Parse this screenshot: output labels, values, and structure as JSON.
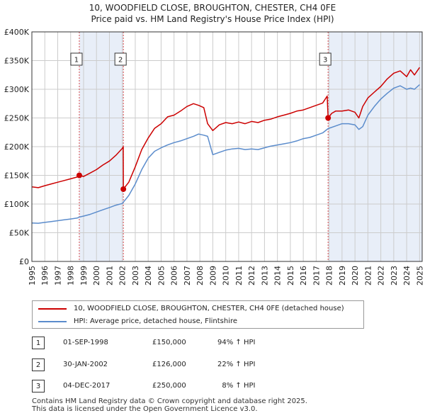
{
  "title": {
    "line1": "10, WOODFIELD CLOSE, BROUGHTON, CHESTER, CH4 0FE",
    "line2": "Price paid vs. HM Land Registry's House Price Index (HPI)"
  },
  "colors": {
    "property": "#cc0000",
    "hpi": "#5b8ccc",
    "shade": "#e8eef8",
    "grid": "#cccccc",
    "marker_border": "#333333"
  },
  "chart_data": {
    "type": "line",
    "title": "10, WOODFIELD CLOSE, BROUGHTON, CHESTER, CH4 0FE",
    "subtitle": "Price paid vs. HM Land Registry's House Price Index (HPI)",
    "xlabel": "",
    "ylabel": "",
    "xlim": [
      1995,
      2025.2
    ],
    "ylim": [
      0,
      400000
    ],
    "grid": true,
    "x_ticks": [
      "1995",
      "1996",
      "1997",
      "1998",
      "1999",
      "2000",
      "2001",
      "2002",
      "2003",
      "2004",
      "2005",
      "2006",
      "2007",
      "2008",
      "2009",
      "2010",
      "2011",
      "2012",
      "2013",
      "2014",
      "2015",
      "2016",
      "2017",
      "2018",
      "2019",
      "2020",
      "2021",
      "2022",
      "2023",
      "2024",
      "2025"
    ],
    "y_ticks": [
      {
        "value": 0,
        "label": "£0"
      },
      {
        "value": 50000,
        "label": "£50K"
      },
      {
        "value": 100000,
        "label": "£100K"
      },
      {
        "value": 150000,
        "label": "£150K"
      },
      {
        "value": 200000,
        "label": "£200K"
      },
      {
        "value": 250000,
        "label": "£250K"
      },
      {
        "value": 300000,
        "label": "£300K"
      },
      {
        "value": 350000,
        "label": "£350K"
      },
      {
        "value": 400000,
        "label": "£400K"
      }
    ],
    "shaded_ranges": [
      [
        1998.67,
        2002.08
      ],
      [
        2017.92,
        2025.2
      ]
    ],
    "series": [
      {
        "name": "10, WOODFIELD CLOSE, BROUGHTON, CHESTER, CH4 0FE (detached house)",
        "color": "#cc0000",
        "x": [
          1995.0,
          1995.5,
          1996.0,
          1996.5,
          1997.0,
          1997.5,
          1998.0,
          1998.5,
          1998.67,
          1999.0,
          1999.5,
          2000.0,
          2000.5,
          2001.0,
          2001.5,
          2002.0,
          2002.07,
          2002.08,
          2002.5,
          2003.0,
          2003.5,
          2004.0,
          2004.5,
          2005.0,
          2005.5,
          2006.0,
          2006.5,
          2007.0,
          2007.5,
          2007.9,
          2008.3,
          2008.6,
          2009.0,
          2009.5,
          2010.0,
          2010.5,
          2011.0,
          2011.5,
          2012.0,
          2012.5,
          2013.0,
          2013.5,
          2014.0,
          2014.5,
          2015.0,
          2015.5,
          2016.0,
          2016.5,
          2017.0,
          2017.5,
          2017.85,
          2017.92,
          2018.2,
          2018.5,
          2019.0,
          2019.5,
          2020.0,
          2020.3,
          2020.6,
          2021.0,
          2021.5,
          2022.0,
          2022.5,
          2023.0,
          2023.5,
          2024.0,
          2024.3,
          2024.6,
          2025.0
        ],
        "values": [
          130000,
          128500,
          132000,
          135000,
          138000,
          141000,
          144000,
          147000,
          150000,
          148000,
          154000,
          160000,
          168000,
          175000,
          185000,
          197000,
          200000,
          126000,
          138000,
          165000,
          195000,
          215000,
          232000,
          240000,
          252000,
          255000,
          262000,
          270000,
          275000,
          272000,
          268000,
          240000,
          228000,
          238000,
          242000,
          240000,
          243000,
          240000,
          244000,
          242000,
          246000,
          248000,
          252000,
          255000,
          258000,
          262000,
          264000,
          268000,
          272000,
          276000,
          288000,
          250000,
          258000,
          262000,
          262000,
          264000,
          260000,
          250000,
          270000,
          285000,
          295000,
          305000,
          318000,
          328000,
          332000,
          322000,
          334000,
          325000,
          338000
        ]
      },
      {
        "name": "HPI: Average price, detached house, Flintshire",
        "color": "#5b8ccc",
        "x": [
          1995.0,
          1995.5,
          1996.0,
          1996.5,
          1997.0,
          1997.5,
          1998.0,
          1998.5,
          1998.67,
          1999.0,
          1999.5,
          2000.0,
          2000.5,
          2001.0,
          2001.5,
          2002.0,
          2002.08,
          2002.5,
          2003.0,
          2003.5,
          2004.0,
          2004.5,
          2005.0,
          2005.5,
          2006.0,
          2006.5,
          2007.0,
          2007.5,
          2007.9,
          2008.3,
          2008.6,
          2009.0,
          2009.5,
          2010.0,
          2010.5,
          2011.0,
          2011.5,
          2012.0,
          2012.5,
          2013.0,
          2013.5,
          2014.0,
          2014.5,
          2015.0,
          2015.5,
          2016.0,
          2016.5,
          2017.0,
          2017.5,
          2017.92,
          2018.5,
          2019.0,
          2019.5,
          2020.0,
          2020.3,
          2020.6,
          2021.0,
          2021.5,
          2022.0,
          2022.5,
          2023.0,
          2023.5,
          2024.0,
          2024.3,
          2024.6,
          2025.0
        ],
        "values": [
          67000,
          66500,
          68000,
          69500,
          71000,
          72500,
          74000,
          75500,
          77300,
          79000,
          82000,
          86000,
          90000,
          94000,
          98000,
          101000,
          103300,
          115000,
          135000,
          160000,
          180000,
          192000,
          198000,
          203000,
          207000,
          210000,
          214000,
          218000,
          222000,
          220000,
          218000,
          186000,
          190000,
          194000,
          196000,
          197000,
          195000,
          196000,
          195000,
          198000,
          201000,
          203000,
          205000,
          207000,
          210000,
          214000,
          216000,
          220000,
          224000,
          231500,
          236000,
          240000,
          240000,
          238000,
          230000,
          235000,
          255000,
          270000,
          283000,
          293000,
          302000,
          306000,
          300000,
          302000,
          300000,
          308000
        ]
      }
    ],
    "sales": [
      {
        "num": "1",
        "x": 1998.67,
        "value": 150000,
        "date": "01-SEP-1998",
        "price": "£150,000",
        "hpi": "94% ↑ HPI"
      },
      {
        "num": "2",
        "x": 2002.08,
        "value": 126000,
        "date": "30-JAN-2002",
        "price": "£126,000",
        "hpi": "22% ↑ HPI"
      },
      {
        "num": "3",
        "x": 2017.92,
        "value": 250000,
        "date": "04-DEC-2017",
        "price": "£250,000",
        "hpi": "  8% ↑ HPI"
      }
    ],
    "legend": [
      "10, WOODFIELD CLOSE, BROUGHTON, CHESTER, CH4 0FE (detached house)",
      "HPI: Average price, detached house, Flintshire"
    ]
  },
  "footer": {
    "line1": "Contains HM Land Registry data © Crown copyright and database right 2025.",
    "line2": "This data is licensed under the Open Government Licence v3.0."
  }
}
